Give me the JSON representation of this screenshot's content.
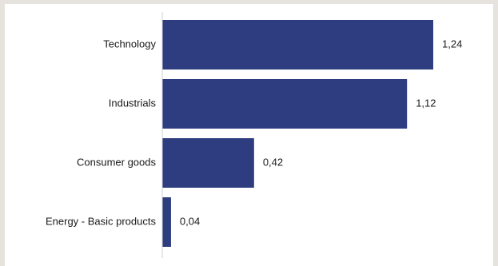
{
  "colors": {
    "bar": "#2e3d80",
    "axis": "#d0d0d0",
    "background": "#ffffff",
    "frame": "#e6e2dd"
  },
  "chart_data": {
    "type": "bar",
    "orientation": "horizontal",
    "title": "",
    "xlabel": "",
    "ylabel": "",
    "categories": [
      "Technology",
      "Industrials",
      "Consumer goods",
      "Energy - Basic products"
    ],
    "values": [
      1.24,
      1.12,
      0.42,
      0.04
    ],
    "value_labels": [
      "1,24",
      "1,12",
      "0,42",
      "0,04"
    ],
    "xlim": [
      0,
      1.24
    ],
    "grid": false,
    "legend": "none"
  }
}
